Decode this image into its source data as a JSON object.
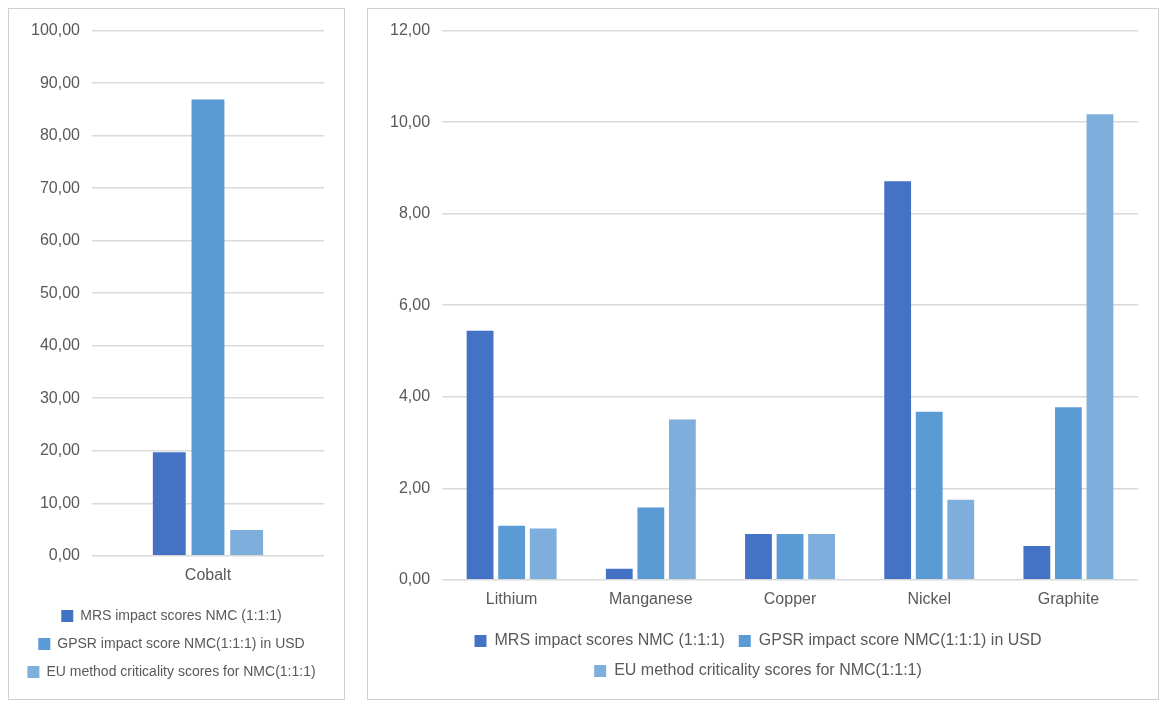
{
  "chart_data": [
    {
      "type": "bar",
      "categories": [
        "Cobalt"
      ],
      "series": [
        {
          "name": "MRS impact scores NMC (1:1:1)",
          "color": "#4472c4",
          "values": [
            19.7
          ]
        },
        {
          "name": "GPSR impact score NMC(1:1:1) in USD",
          "color": "#5b9bd5",
          "values": [
            86.9
          ]
        },
        {
          "name": "EU method criticality scores for NMC(1:1:1)",
          "color": "#7eaedc",
          "values": [
            4.9
          ]
        }
      ],
      "ylim": [
        0,
        100
      ],
      "yticks": [
        {
          "value": 0,
          "label": "0,00"
        },
        {
          "value": 10,
          "label": "10,00"
        },
        {
          "value": 20,
          "label": "20,00"
        },
        {
          "value": 30,
          "label": "30,00"
        },
        {
          "value": 40,
          "label": "40,00"
        },
        {
          "value": 50,
          "label": "50,00"
        },
        {
          "value": 60,
          "label": "60,00"
        },
        {
          "value": 70,
          "label": "70,00"
        },
        {
          "value": 80,
          "label": "80,00"
        },
        {
          "value": 90,
          "label": "90,00"
        },
        {
          "value": 100,
          "label": "100,00"
        }
      ],
      "grid": "y",
      "legend": "bottom"
    },
    {
      "type": "bar",
      "categories": [
        "Lithium",
        "Manganese",
        "Copper",
        "Nickel",
        "Graphite"
      ],
      "series": [
        {
          "name": "MRS impact scores NMC (1:1:1)",
          "color": "#4472c4",
          "values": [
            5.44,
            0.24,
            1.0,
            8.71,
            0.74
          ]
        },
        {
          "name": "GPSR impact score NMC(1:1:1) in USD",
          "color": "#5b9bd5",
          "values": [
            1.18,
            1.58,
            1.0,
            3.67,
            3.77
          ]
        },
        {
          "name": "EU method criticality scores for NMC(1:1:1)",
          "color": "#7eaedc",
          "values": [
            1.12,
            3.5,
            1.0,
            1.75,
            10.17
          ]
        }
      ],
      "ylim": [
        0,
        12
      ],
      "yticks": [
        {
          "value": 0,
          "label": "0,00"
        },
        {
          "value": 2,
          "label": "2,00"
        },
        {
          "value": 4,
          "label": "4,00"
        },
        {
          "value": 6,
          "label": "6,00"
        },
        {
          "value": 8,
          "label": "8,00"
        },
        {
          "value": 10,
          "label": "10,00"
        },
        {
          "value": 12,
          "label": "12,00"
        }
      ],
      "grid": "y",
      "legend": "bottom"
    }
  ]
}
